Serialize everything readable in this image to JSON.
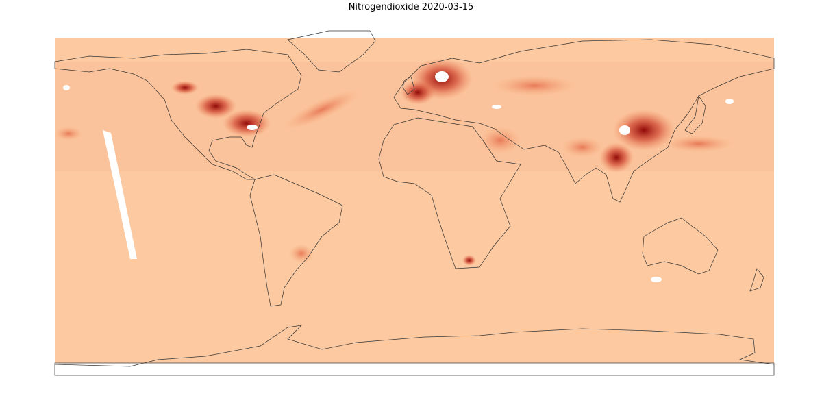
{
  "title": "Nitrogendioxide 2020-03-15"
}
